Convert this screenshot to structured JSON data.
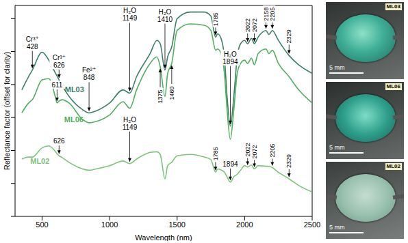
{
  "chart_data": {
    "type": "line",
    "x_label": "Wavelength (nm)",
    "y_label": "Reflectance factor (offset for clarity)",
    "xlim": [
      300,
      2500
    ],
    "xticks": [
      500,
      1000,
      1500,
      2000,
      2500
    ],
    "ylim": [
      0,
      32
    ],
    "yticks": [
      0,
      5,
      10,
      15,
      20,
      25,
      30
    ],
    "tick_labels": "x",
    "grid": false,
    "x": [
      350,
      400,
      428,
      500,
      550,
      600,
      611,
      626,
      650,
      700,
      800,
      848,
      900,
      1000,
      1100,
      1149,
      1200,
      1300,
      1350,
      1375,
      1410,
      1430,
      1460,
      1500,
      1600,
      1700,
      1750,
      1785,
      1800,
      1830,
      1850,
      1870,
      1894,
      1920,
      1945,
      1970,
      2000,
      2022,
      2050,
      2072,
      2100,
      2158,
      2180,
      2205,
      2250,
      2329,
      2400,
      2500
    ],
    "series": [
      {
        "name": "ML03",
        "color": "#3b7f66",
        "values": [
          19.2,
          21.2,
          22.2,
          24.9,
          23.7,
          21.7,
          21.3,
          20.7,
          19.8,
          18.2,
          16.2,
          15.7,
          16.0,
          17.2,
          19.2,
          18.7,
          21.2,
          24.7,
          26.7,
          26.2,
          22.2,
          24.2,
          25.7,
          30.0,
          31.0,
          31.0,
          30.4,
          27.2,
          27.7,
          26.7,
          24.2,
          18.2,
          13.7,
          18.2,
          24.2,
          26.2,
          26.7,
          26.2,
          27.0,
          26.2,
          27.2,
          28.2,
          27.6,
          28.2,
          26.7,
          24.4,
          23.0,
          21.7
        ]
      },
      {
        "name": "ML06",
        "color": "#4fae5f",
        "values": [
          15.7,
          17.2,
          17.7,
          20.7,
          20.9,
          18.0,
          17.2,
          17.5,
          17.7,
          17.2,
          14.7,
          14.2,
          14.4,
          15.4,
          17.4,
          16.4,
          19.2,
          23.2,
          24.2,
          22.7,
          18.2,
          21.7,
          23.2,
          28.2,
          29.2,
          29.0,
          28.2,
          25.2,
          25.4,
          24.4,
          21.7,
          16.2,
          11.7,
          16.2,
          21.7,
          23.2,
          23.7,
          23.2,
          24.0,
          23.0,
          24.7,
          25.4,
          24.7,
          25.2,
          23.2,
          21.2,
          19.2,
          17.2
        ]
      },
      {
        "name": "ML02",
        "color": "#7cc47a",
        "values": [
          8.7,
          9.0,
          9.0,
          10.4,
          10.7,
          9.8,
          9.5,
          9.2,
          8.9,
          8.2,
          7.2,
          7.0,
          7.2,
          7.7,
          8.4,
          8.0,
          8.7,
          9.7,
          9.8,
          9.4,
          5.7,
          7.7,
          8.2,
          9.2,
          9.4,
          9.0,
          8.6,
          6.7,
          7.2,
          7.0,
          6.7,
          6.0,
          5.2,
          6.0,
          6.4,
          7.0,
          7.7,
          7.5,
          7.8,
          7.2,
          7.7,
          7.6,
          7.6,
          7.4,
          6.7,
          5.7,
          4.7,
          3.7
        ]
      }
    ],
    "annotations": [
      {
        "series": "ML03",
        "value": 428,
        "label": "Cr³⁺"
      },
      {
        "series": "ML03",
        "value": 626,
        "label": "Cr³⁺"
      },
      {
        "series": "ML03",
        "value": 848,
        "label": "Fe²⁺"
      },
      {
        "series": "ML03",
        "value": 1149,
        "label": "H₂O"
      },
      {
        "series": "ML03",
        "value": 1410,
        "label": "H₂O"
      },
      {
        "series": "ML03",
        "value": 1785,
        "orientation": "vertical"
      },
      {
        "series": "ML03",
        "value": 1894,
        "label": "H₂O"
      },
      {
        "series": "ML03",
        "value": 2022,
        "orientation": "vertical"
      },
      {
        "series": "ML03",
        "value": 2072,
        "orientation": "vertical"
      },
      {
        "series": "ML03",
        "value": 2158,
        "orientation": "vertical"
      },
      {
        "series": "ML03",
        "value": 2205,
        "orientation": "vertical"
      },
      {
        "series": "ML03",
        "value": 2329,
        "orientation": "vertical"
      },
      {
        "series": "ML06",
        "value": 611
      },
      {
        "series": "ML06",
        "value": 1375,
        "orientation": "vertical"
      },
      {
        "series": "ML06",
        "value": 1460,
        "orientation": "vertical"
      },
      {
        "series": "ML02",
        "value": 1149,
        "label": "H₂O"
      },
      {
        "series": "ML02",
        "value": 626
      },
      {
        "series": "ML02",
        "value": 1785,
        "orientation": "vertical"
      },
      {
        "series": "ML02",
        "value": 1894
      },
      {
        "series": "ML02",
        "value": 2022,
        "orientation": "vertical"
      },
      {
        "series": "ML02",
        "value": 2072,
        "orientation": "vertical"
      },
      {
        "series": "ML02",
        "value": 2205,
        "orientation": "vertical"
      },
      {
        "series": "ML02",
        "value": 2329,
        "orientation": "vertical"
      }
    ]
  },
  "photos": [
    {
      "sample": "ML03",
      "scale_bar": "5 mm"
    },
    {
      "sample": "ML06",
      "scale_bar": "5 mm"
    },
    {
      "sample": "ML02",
      "scale_bar": "5 mm"
    }
  ]
}
